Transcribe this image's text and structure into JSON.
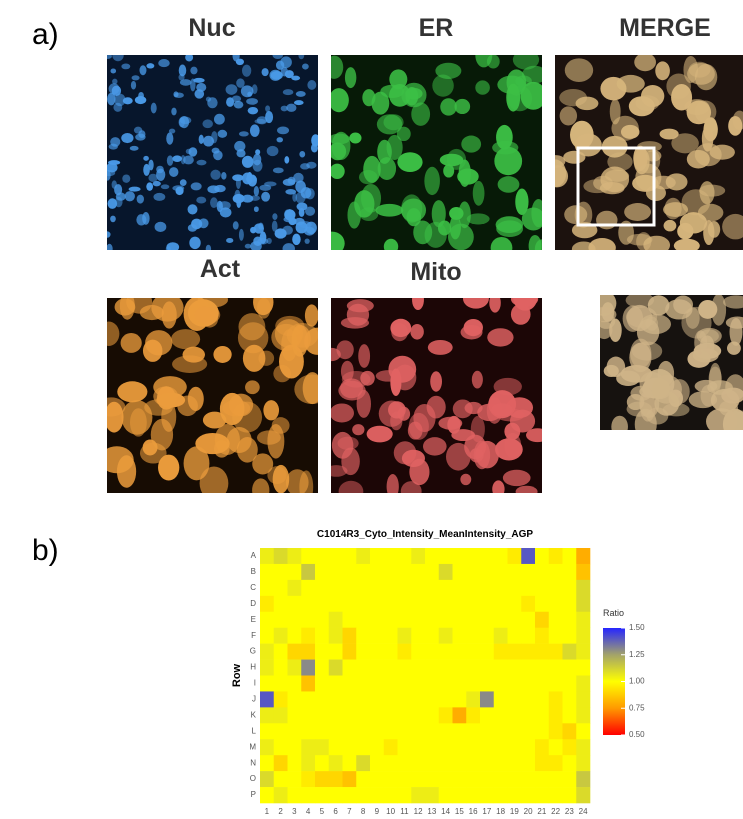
{
  "figure": {
    "panel_a": {
      "label": "a)",
      "images": [
        {
          "title": "Nuc"
        },
        {
          "title": "ER"
        },
        {
          "title": "MERGE"
        },
        {
          "title": "Act"
        },
        {
          "title": "Mito"
        }
      ]
    },
    "panel_b": {
      "label": "b)"
    }
  },
  "chart_data": {
    "type": "heatmap",
    "title": "C1014R3_Cyto_Intensity_MeanIntensity_AGP",
    "y_label": "Row",
    "x": [
      "1",
      "2",
      "3",
      "4",
      "5",
      "6",
      "7",
      "8",
      "9",
      "10",
      "11",
      "12",
      "13",
      "14",
      "15",
      "16",
      "17",
      "18",
      "19",
      "20",
      "21",
      "22",
      "23",
      "24"
    ],
    "y": [
      "A",
      "B",
      "C",
      "D",
      "E",
      "F",
      "G",
      "H",
      "I",
      "J",
      "K",
      "L",
      "M",
      "N",
      "O",
      "P"
    ],
    "values": [
      [
        1.05,
        1.1,
        1.05,
        1.0,
        1.0,
        1.0,
        1.0,
        1.05,
        1.0,
        1.0,
        1.0,
        1.05,
        1.0,
        1.0,
        1.0,
        1.0,
        1.0,
        1.0,
        0.95,
        1.4,
        1.0,
        0.95,
        1.0,
        0.8
      ],
      [
        1.0,
        1.0,
        1.0,
        1.15,
        1.0,
        1.0,
        1.0,
        1.0,
        1.0,
        1.0,
        1.0,
        1.0,
        1.0,
        1.1,
        1.0,
        1.0,
        1.0,
        1.0,
        1.0,
        1.0,
        1.0,
        1.0,
        1.0,
        0.85
      ],
      [
        1.0,
        1.0,
        1.05,
        1.0,
        1.0,
        1.0,
        1.0,
        1.0,
        1.0,
        1.0,
        1.0,
        1.0,
        1.0,
        1.0,
        1.0,
        1.0,
        1.0,
        1.0,
        1.0,
        1.0,
        1.0,
        1.0,
        1.0,
        1.1
      ],
      [
        0.95,
        1.0,
        1.0,
        1.0,
        1.0,
        1.0,
        1.0,
        1.0,
        1.0,
        1.0,
        1.0,
        1.0,
        1.0,
        1.0,
        1.0,
        1.0,
        1.0,
        1.0,
        1.0,
        0.95,
        1.0,
        1.0,
        1.0,
        1.1
      ],
      [
        1.0,
        1.0,
        1.0,
        1.0,
        1.0,
        1.05,
        1.0,
        1.0,
        1.0,
        1.0,
        1.0,
        1.0,
        1.0,
        1.0,
        1.0,
        1.0,
        1.0,
        1.0,
        1.0,
        1.0,
        0.9,
        1.0,
        1.0,
        1.05
      ],
      [
        1.0,
        1.05,
        1.0,
        0.95,
        1.0,
        1.05,
        0.9,
        1.0,
        1.0,
        1.0,
        1.05,
        1.0,
        1.0,
        1.05,
        1.0,
        1.0,
        1.0,
        1.05,
        1.0,
        1.0,
        0.95,
        1.0,
        1.0,
        1.05
      ],
      [
        1.05,
        1.0,
        0.9,
        0.9,
        1.0,
        1.0,
        0.9,
        1.0,
        1.0,
        1.0,
        0.95,
        1.0,
        1.0,
        1.0,
        1.0,
        1.0,
        1.0,
        0.95,
        0.95,
        0.95,
        0.95,
        0.95,
        1.1,
        1.05
      ],
      [
        1.05,
        1.0,
        1.05,
        1.3,
        1.0,
        1.1,
        1.0,
        1.0,
        1.0,
        1.0,
        1.0,
        1.0,
        1.0,
        1.0,
        1.0,
        1.0,
        1.0,
        1.0,
        1.0,
        1.0,
        1.0,
        1.0,
        1.0,
        1.0
      ],
      [
        1.0,
        1.0,
        1.0,
        0.85,
        1.0,
        1.0,
        1.0,
        1.0,
        1.0,
        1.0,
        1.0,
        1.0,
        1.0,
        1.0,
        1.0,
        1.0,
        1.0,
        1.0,
        1.0,
        1.0,
        1.0,
        1.0,
        1.0,
        1.05
      ],
      [
        1.4,
        0.95,
        1.0,
        1.0,
        1.0,
        1.0,
        1.0,
        1.0,
        1.0,
        1.0,
        1.0,
        1.0,
        1.0,
        1.0,
        1.0,
        1.05,
        1.3,
        1.0,
        1.0,
        1.0,
        1.0,
        0.95,
        1.0,
        1.05
      ],
      [
        1.05,
        1.05,
        1.0,
        1.0,
        1.0,
        1.0,
        1.0,
        1.0,
        1.0,
        1.0,
        1.0,
        1.0,
        1.0,
        0.95,
        0.8,
        0.95,
        1.0,
        1.0,
        1.0,
        1.0,
        1.0,
        0.95,
        1.0,
        1.05
      ],
      [
        1.0,
        1.0,
        1.0,
        1.0,
        1.0,
        1.0,
        1.0,
        1.0,
        1.0,
        1.0,
        1.0,
        1.0,
        1.0,
        1.0,
        1.0,
        1.0,
        1.0,
        1.0,
        1.0,
        1.0,
        1.0,
        0.95,
        0.9,
        1.0
      ],
      [
        1.05,
        1.0,
        1.0,
        1.05,
        1.05,
        1.0,
        1.0,
        1.0,
        1.0,
        0.95,
        1.0,
        1.0,
        1.0,
        1.0,
        1.0,
        1.0,
        1.0,
        1.0,
        1.0,
        1.0,
        0.95,
        1.0,
        0.95,
        1.05
      ],
      [
        1.0,
        0.9,
        1.0,
        1.05,
        1.0,
        1.05,
        1.0,
        1.1,
        1.0,
        1.0,
        1.0,
        1.0,
        1.0,
        1.0,
        1.0,
        1.0,
        1.0,
        1.0,
        1.0,
        1.0,
        0.95,
        0.95,
        1.0,
        1.05
      ],
      [
        1.1,
        1.0,
        1.0,
        0.95,
        0.9,
        0.9,
        0.85,
        1.0,
        1.0,
        1.0,
        1.0,
        1.0,
        1.0,
        1.0,
        1.0,
        1.0,
        1.0,
        1.0,
        1.0,
        1.0,
        1.0,
        1.0,
        1.0,
        1.15
      ],
      [
        1.0,
        1.05,
        1.0,
        1.0,
        1.0,
        1.0,
        1.0,
        1.0,
        1.0,
        1.0,
        1.0,
        1.05,
        1.05,
        1.0,
        1.0,
        1.0,
        1.0,
        1.0,
        1.0,
        1.0,
        1.0,
        1.0,
        1.0,
        1.1
      ]
    ],
    "colorbar_title": "Ratio",
    "zlim": [
      0.5,
      1.5
    ],
    "zticks": [
      {
        "value": 0.5,
        "label": "0.50"
      },
      {
        "value": 0.75,
        "label": "0.75"
      },
      {
        "value": 1.0,
        "label": "1.00"
      },
      {
        "value": 1.25,
        "label": "1.25"
      },
      {
        "value": 1.5,
        "label": "1.50"
      }
    ],
    "colorscale": [
      "#ff0000",
      "#ff9900",
      "#ffff00",
      "#a3a36a",
      "#2626ff"
    ]
  }
}
